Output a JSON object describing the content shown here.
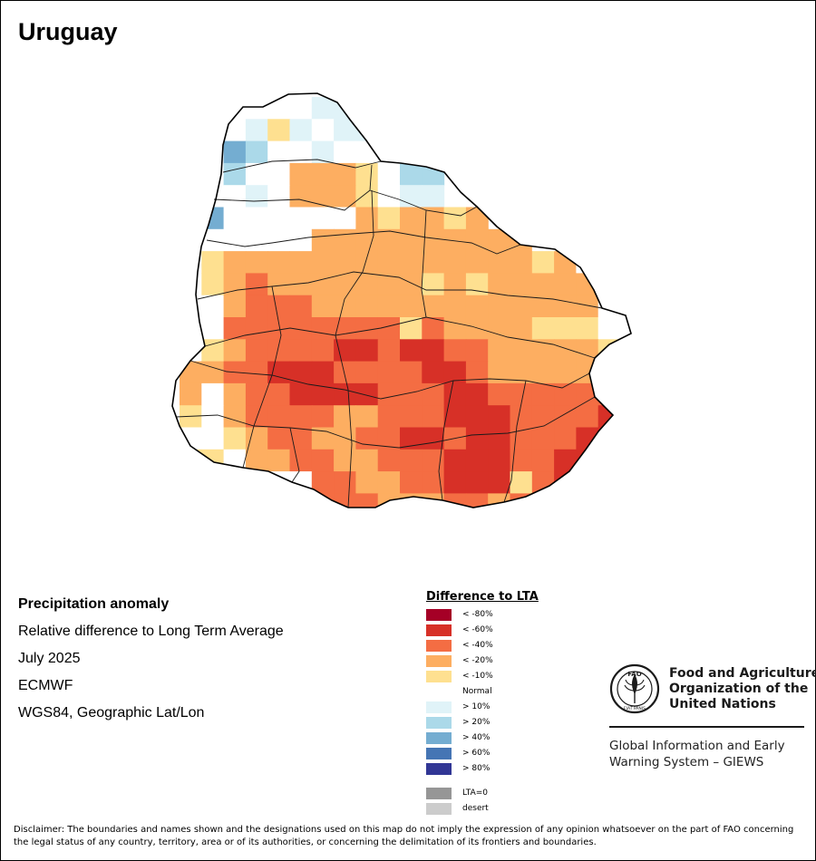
{
  "map": {
    "title": "Uruguay",
    "country_label": "Uruguay",
    "grid_cells": [
      {
        "row": 0,
        "cols": [
          {
            "c": 4,
            "v": "g10"
          },
          {
            "c": 5,
            "v": "g10"
          },
          {
            "c": 6,
            "v": "g10"
          }
        ]
      },
      {
        "row": 1,
        "cols": [
          {
            "c": 2,
            "v": "g10"
          },
          {
            "c": 3,
            "v": "g10"
          },
          {
            "c": 4,
            "v": "g10"
          },
          {
            "c": 5,
            "v": "g20"
          },
          {
            "c": 6,
            "v": "g10"
          }
        ]
      },
      {
        "row": 2,
        "cols": [
          {
            "c": 0,
            "v": "g40"
          },
          {
            "c": 1,
            "v": "g20"
          },
          {
            "c": 2,
            "v": "g10"
          },
          {
            "c": 3,
            "v": "g10"
          },
          {
            "c": 4,
            "v": "g10"
          },
          {
            "c": 5,
            "v": "g10"
          },
          {
            "c": 6,
            "v": "g10"
          },
          {
            "c": 7,
            "v": "g10"
          }
        ]
      },
      {
        "row": 3,
        "cols": [
          {
            "c": 1,
            "v": "g20"
          },
          {
            "c": 2,
            "v": "n"
          },
          {
            "c": 3,
            "v": "n"
          },
          {
            "c": 4,
            "v": "l20"
          },
          {
            "c": 5,
            "v": "l20"
          },
          {
            "c": 6,
            "v": "l20"
          },
          {
            "c": 7,
            "v": "l10"
          },
          {
            "c": 9,
            "v": "g20"
          },
          {
            "c": 10,
            "v": "g20"
          }
        ]
      },
      {
        "row": 4,
        "cols": [
          {
            "c": 1,
            "v": "n"
          },
          {
            "c": 2,
            "v": "g10"
          },
          {
            "c": 3,
            "v": "n"
          },
          {
            "c": 4,
            "v": "l20"
          },
          {
            "c": 5,
            "v": "l20"
          },
          {
            "c": 6,
            "v": "l20"
          },
          {
            "c": 7,
            "v": "n"
          },
          {
            "c": 9,
            "v": "g10"
          },
          {
            "c": 10,
            "v": "g10"
          }
        ]
      },
      {
        "row": 5,
        "cols": [
          {
            "c": 0,
            "v": "g40"
          },
          {
            "c": 1,
            "v": "n"
          },
          {
            "c": 2,
            "v": "l20"
          },
          {
            "c": 3,
            "v": "n"
          },
          {
            "c": 4,
            "v": "n"
          },
          {
            "c": 5,
            "v": "n"
          },
          {
            "c": 6,
            "v": "l10"
          },
          {
            "c": 7,
            "v": "l20"
          },
          {
            "c": 8,
            "v": "l10"
          },
          {
            "c": 9,
            "v": "l20"
          },
          {
            "c": 10,
            "v": "l10"
          },
          {
            "c": 11,
            "v": "l20"
          },
          {
            "c": 12,
            "v": "l10"
          }
        ]
      }
    ],
    "scale": ">10% to <-80%"
  },
  "info": {
    "heading": "Precipitation anomaly",
    "subtitle": "Relative difference to Long Term Average",
    "period": "July 2025",
    "source": "ECMWF",
    "projection": "WGS84, Geographic Lat/Lon"
  },
  "legend": {
    "title": "Difference to LTA",
    "items": [
      {
        "label": "< -80%",
        "color": "#a50026"
      },
      {
        "label": "< -60%",
        "color": "#d73027"
      },
      {
        "label": "< -40%",
        "color": "#f46d43"
      },
      {
        "label": "< -20%",
        "color": "#fdae61"
      },
      {
        "label": "< -10%",
        "color": "#fee090"
      },
      {
        "label": "Normal",
        "color": "#ffffff"
      },
      {
        "label": "> 10%",
        "color": "#e0f3f8"
      },
      {
        "label": "> 20%",
        "color": "#abd9e9"
      },
      {
        "label": "> 40%",
        "color": "#74add1"
      },
      {
        "label": "> 60%",
        "color": "#4575b4"
      },
      {
        "label": "> 80%",
        "color": "#313695"
      },
      {
        "label": "LTA=0",
        "color": "#969696"
      },
      {
        "label": "desert",
        "color": "#cccccc"
      }
    ]
  },
  "fao": {
    "org_line1": "Food and Agriculture",
    "org_line2": "Organization of the",
    "org_line3": "United Nations",
    "emblem_text": "FAO",
    "emblem_motto": "FIAT PANIS",
    "giews_line1": "Global Information and Early",
    "giews_line2": "Warning System – GIEWS"
  },
  "disclaimer": "Disclaimer: The boundaries and names shown and the designations used on this map do not imply the expression of any opinion whatsoever on the part of FAO concerning the legal status of any country, territory, area or of its authorities, or concerning the delimitation of its frontiers and boundaries."
}
